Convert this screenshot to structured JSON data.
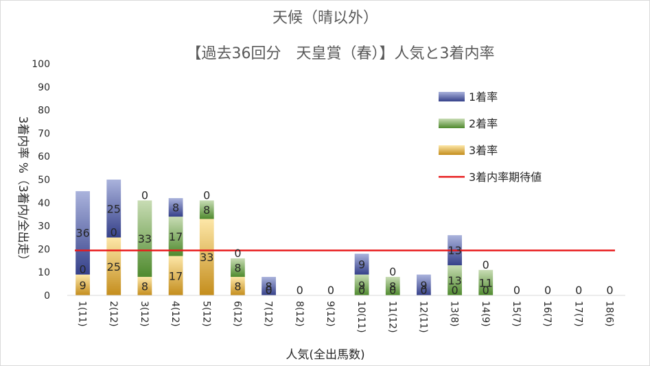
{
  "chart_data": {
    "type": "bar",
    "stacked": true,
    "title": "天候（晴以外）",
    "subtitle": "【過去36回分　天皇賞（春）】人気と3着内率",
    "xlabel": "人気(全出馬数)",
    "ylabel": "3着内率 %（3着内/全出走）",
    "ylim": [
      0,
      100
    ],
    "yticks": [
      0,
      10,
      20,
      30,
      40,
      50,
      60,
      70,
      80,
      90,
      100
    ],
    "categories": [
      "1(11)",
      "2(12)",
      "3(12)",
      "4(12)",
      "5(12)",
      "6(12)",
      "7(12)",
      "8(12)",
      "9(12)",
      "10(11)",
      "11(12)",
      "12(11)",
      "13(8)",
      "14(9)",
      "15(7)",
      "16(7)",
      "17(7)",
      "18(6)"
    ],
    "series": [
      {
        "name": "3着率",
        "color": "#c9962a",
        "values": [
          9,
          25,
          8,
          17,
          33,
          8,
          0,
          0,
          0,
          0,
          0,
          0,
          0,
          0,
          0,
          0,
          0,
          0
        ]
      },
      {
        "name": "2着率",
        "color": "#6a9a45",
        "values": [
          0,
          0,
          33,
          17,
          8,
          8,
          0,
          0,
          0,
          9,
          8,
          0,
          13,
          11,
          0,
          0,
          0,
          0
        ]
      },
      {
        "name": "1着率",
        "color": "#4a5aa0",
        "values": [
          36,
          25,
          0,
          8,
          0,
          0,
          8,
          0,
          0,
          9,
          0,
          9,
          13,
          0,
          0,
          0,
          0,
          0
        ]
      }
    ],
    "data_labels": [
      [
        "9",
        "0",
        "36"
      ],
      [
        "25",
        "0",
        "25"
      ],
      [
        "8",
        "33",
        "0"
      ],
      [
        "17",
        "17",
        "8"
      ],
      [
        "33",
        "8",
        "0"
      ],
      [
        "8",
        "8",
        "0"
      ],
      [
        "0",
        "0",
        "8"
      ],
      [
        "",
        "",
        "0"
      ],
      [
        "",
        "",
        "0"
      ],
      [
        "0",
        "9",
        "9"
      ],
      [
        "0",
        "8",
        "0"
      ],
      [
        "0",
        "0",
        "9"
      ],
      [
        "0",
        "13",
        "13"
      ],
      [
        "0",
        "11",
        "0"
      ],
      [
        "",
        "",
        "0"
      ],
      [
        "",
        "",
        "0"
      ],
      [
        "",
        "",
        "0"
      ],
      [
        "",
        "",
        "0"
      ]
    ],
    "expected_line": {
      "name": "3着内率期待値",
      "value": 19.4,
      "color": "#e8191a"
    },
    "legend_order": [
      "1着率",
      "2着率",
      "3着率",
      "3着内率期待値"
    ],
    "legend_position": "top-right",
    "grid": false
  }
}
